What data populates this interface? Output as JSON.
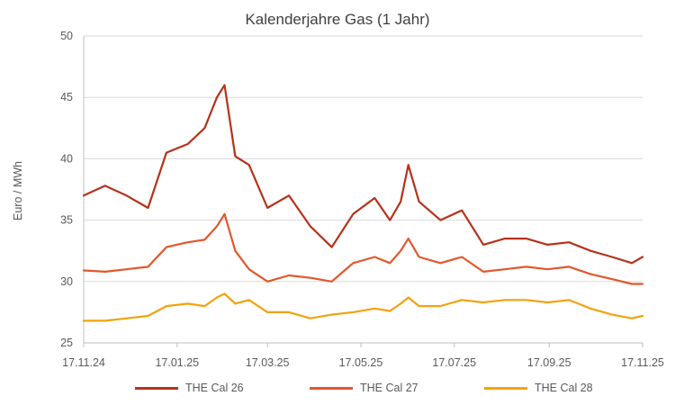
{
  "chart_data": {
    "type": "line",
    "title": "Kalenderjahre Gas (1 Jahr)",
    "xlabel": "",
    "ylabel": "Euro / MWh",
    "ylim": [
      25,
      50
    ],
    "yticks": [
      25,
      30,
      35,
      40,
      45,
      50
    ],
    "x_range": [
      "17.11.24",
      "17.11.25"
    ],
    "x_tick_labels": [
      "17.11.24",
      "17.01.25",
      "17.03.25",
      "17.05.25",
      "17.07.25",
      "17.09.25",
      "17.11.25"
    ],
    "grid": "horizontal",
    "legend_position": "bottom",
    "series": [
      {
        "name": "THE Cal 26",
        "color": "#b5321a",
        "x": [
          "17.11.24",
          "01.12.24",
          "15.12.24",
          "29.12.24",
          "10.01.25",
          "24.01.25",
          "04.02.25",
          "12.02.25",
          "17.02.25",
          "24.02.25",
          "05.03.25",
          "17.03.25",
          "31.03.25",
          "14.04.25",
          "28.04.25",
          "12.05.25",
          "26.05.25",
          "05.06.25",
          "12.06.25",
          "17.06.25",
          "24.06.25",
          "08.07.25",
          "22.07.25",
          "05.08.25",
          "19.08.25",
          "02.09.25",
          "16.09.25",
          "30.09.25",
          "14.10.25",
          "28.10.25",
          "10.11.25",
          "17.11.25"
        ],
        "values": [
          37.0,
          37.8,
          37.0,
          36.0,
          40.5,
          41.2,
          42.5,
          45.0,
          46.0,
          40.2,
          39.5,
          36.0,
          37.0,
          34.5,
          32.8,
          35.5,
          36.8,
          35.0,
          36.5,
          39.5,
          36.5,
          35.0,
          35.8,
          33.0,
          33.5,
          33.5,
          33.0,
          33.2,
          32.5,
          32.0,
          31.5,
          32.0
        ]
      },
      {
        "name": "THE Cal 27",
        "color": "#e2572c",
        "x": [
          "17.11.24",
          "01.12.24",
          "15.12.24",
          "29.12.24",
          "10.01.25",
          "24.01.25",
          "04.02.25",
          "12.02.25",
          "17.02.25",
          "24.02.25",
          "05.03.25",
          "17.03.25",
          "31.03.25",
          "14.04.25",
          "28.04.25",
          "12.05.25",
          "26.05.25",
          "05.06.25",
          "12.06.25",
          "17.06.25",
          "24.06.25",
          "08.07.25",
          "22.07.25",
          "05.08.25",
          "19.08.25",
          "02.09.25",
          "16.09.25",
          "30.09.25",
          "14.10.25",
          "28.10.25",
          "10.11.25",
          "17.11.25"
        ],
        "values": [
          30.9,
          30.8,
          31.0,
          31.2,
          32.8,
          33.2,
          33.4,
          34.5,
          35.5,
          32.5,
          31.0,
          30.0,
          30.5,
          30.3,
          30.0,
          31.5,
          32.0,
          31.5,
          32.5,
          33.5,
          32.0,
          31.5,
          32.0,
          30.8,
          31.0,
          31.2,
          31.0,
          31.2,
          30.6,
          30.2,
          29.8,
          29.8
        ]
      },
      {
        "name": "THE Cal 28",
        "color": "#f2a20f",
        "x": [
          "17.11.24",
          "01.12.24",
          "15.12.24",
          "29.12.24",
          "10.01.25",
          "24.01.25",
          "04.02.25",
          "12.02.25",
          "17.02.25",
          "24.02.25",
          "05.03.25",
          "17.03.25",
          "31.03.25",
          "14.04.25",
          "28.04.25",
          "12.05.25",
          "26.05.25",
          "05.06.25",
          "12.06.25",
          "17.06.25",
          "24.06.25",
          "08.07.25",
          "22.07.25",
          "05.08.25",
          "19.08.25",
          "02.09.25",
          "16.09.25",
          "30.09.25",
          "14.10.25",
          "28.10.25",
          "10.11.25",
          "17.11.25"
        ],
        "values": [
          26.8,
          26.8,
          27.0,
          27.2,
          28.0,
          28.2,
          28.0,
          28.7,
          29.0,
          28.2,
          28.5,
          27.5,
          27.5,
          27.0,
          27.3,
          27.5,
          27.8,
          27.6,
          28.2,
          28.7,
          28.0,
          28.0,
          28.5,
          28.3,
          28.5,
          28.5,
          28.3,
          28.5,
          27.8,
          27.3,
          27.0,
          27.2
        ]
      }
    ]
  }
}
